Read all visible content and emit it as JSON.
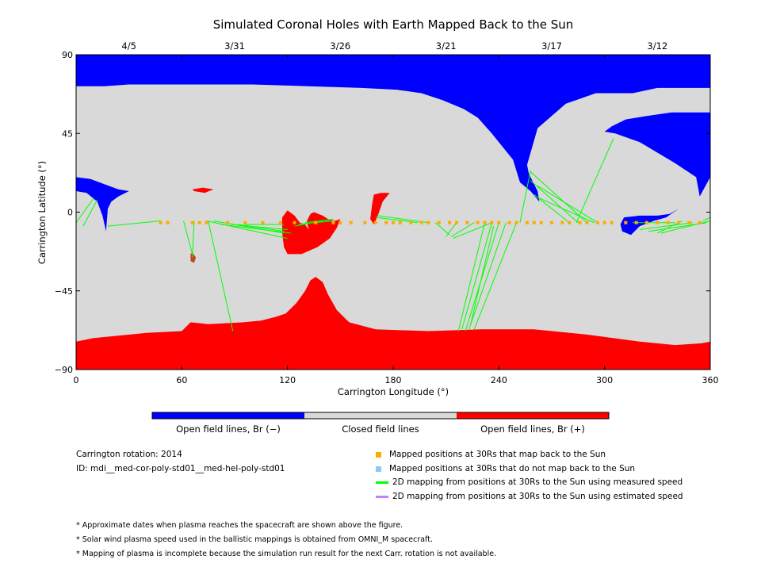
{
  "chart_data": {
    "type": "map",
    "title": "Simulated Coronal Holes with Earth Mapped Back to the Sun",
    "xlabel": "Carrington Longitude (°)",
    "ylabel": "Carrington Latitude (°)",
    "xlim": [
      0,
      360
    ],
    "ylim": [
      -90,
      90
    ],
    "xticks": [
      0,
      60,
      120,
      180,
      240,
      300,
      360
    ],
    "yticks": [
      90,
      45,
      0,
      -45,
      -90
    ],
    "yticklabels": [
      "90",
      "45",
      "0",
      "−45",
      "−90"
    ],
    "top_dates": [
      {
        "label": "4/5",
        "lon": 30
      },
      {
        "label": "3/31",
        "lon": 90
      },
      {
        "label": "3/26",
        "lon": 150
      },
      {
        "label": "3/21",
        "lon": 210
      },
      {
        "label": "3/17",
        "lon": 270
      },
      {
        "label": "3/12",
        "lon": 330
      }
    ],
    "colors": {
      "open_negative": "#0000ff",
      "closed": "#d9d9d9",
      "open_positive": "#ff0000",
      "mapped_orange": "#ffaa00",
      "unmapped_blue": "#8cc8ff",
      "line_green": "#00ff00",
      "line_purple": "#c080ff"
    },
    "regions": {
      "north_negative": [
        [
          0,
          90
        ],
        [
          360,
          90
        ],
        [
          360,
          20
        ],
        [
          354,
          9
        ],
        [
          352,
          20
        ],
        [
          340,
          28
        ],
        [
          320,
          40
        ],
        [
          306,
          45
        ],
        [
          300,
          46
        ],
        [
          304,
          49
        ],
        [
          312,
          53
        ],
        [
          324,
          55
        ],
        [
          338,
          57
        ],
        [
          350,
          57
        ],
        [
          360,
          57
        ],
        [
          360,
          71
        ],
        [
          330,
          71
        ],
        [
          316,
          68
        ],
        [
          295,
          68
        ],
        [
          278,
          62
        ],
        [
          262,
          48
        ],
        [
          256,
          27
        ],
        [
          257,
          22
        ],
        [
          262,
          12
        ],
        [
          263,
          6
        ],
        [
          258,
          12
        ],
        [
          252,
          17
        ],
        [
          248,
          30
        ],
        [
          236,
          45
        ],
        [
          228,
          54
        ],
        [
          220,
          59
        ],
        [
          208,
          64
        ],
        [
          196,
          68
        ],
        [
          182,
          70
        ],
        [
          162,
          71
        ],
        [
          132,
          72
        ],
        [
          100,
          73
        ],
        [
          60,
          73
        ],
        [
          30,
          73
        ],
        [
          16,
          72
        ],
        [
          8,
          72
        ],
        [
          0,
          72
        ]
      ],
      "west_negative": [
        [
          0,
          20
        ],
        [
          8,
          19
        ],
        [
          16,
          16
        ],
        [
          24,
          13
        ],
        [
          30,
          12
        ],
        [
          24,
          9
        ],
        [
          20,
          6
        ],
        [
          18,
          2
        ],
        [
          17,
          -11
        ],
        [
          15,
          -2
        ],
        [
          12,
          6
        ],
        [
          6,
          11
        ],
        [
          0,
          12
        ]
      ],
      "small_negative": [
        [
          311,
          -3
        ],
        [
          320,
          -2
        ],
        [
          330,
          -2
        ],
        [
          337,
          -1
        ],
        [
          342,
          2
        ],
        [
          335,
          -3
        ],
        [
          328,
          -5
        ],
        [
          320,
          -8
        ],
        [
          315,
          -13
        ],
        [
          310,
          -11
        ],
        [
          309,
          -7
        ]
      ],
      "south_positive": [
        [
          0,
          -74
        ],
        [
          10,
          -72
        ],
        [
          20,
          -71
        ],
        [
          40,
          -69
        ],
        [
          60,
          -68
        ],
        [
          65,
          -63
        ],
        [
          75,
          -64
        ],
        [
          95,
          -63
        ],
        [
          105,
          -62
        ],
        [
          113,
          -60
        ],
        [
          119,
          -58
        ],
        [
          125,
          -52
        ],
        [
          130,
          -45
        ],
        [
          133,
          -39
        ],
        [
          136,
          -37
        ],
        [
          140,
          -40
        ],
        [
          143,
          -47
        ],
        [
          148,
          -56
        ],
        [
          155,
          -63
        ],
        [
          170,
          -67
        ],
        [
          200,
          -68
        ],
        [
          230,
          -67
        ],
        [
          260,
          -67
        ],
        [
          290,
          -70
        ],
        [
          320,
          -74
        ],
        [
          340,
          -76
        ],
        [
          355,
          -75
        ],
        [
          360,
          -74
        ],
        [
          360,
          -90
        ],
        [
          0,
          -90
        ]
      ],
      "pos_120": [
        [
          117,
          -3
        ],
        [
          120,
          1
        ],
        [
          124,
          -2
        ],
        [
          127,
          -6
        ],
        [
          130,
          -7
        ],
        [
          132,
          -10
        ],
        [
          131,
          -5
        ],
        [
          133,
          -1
        ],
        [
          135,
          0
        ],
        [
          140,
          -2
        ],
        [
          143,
          -4
        ],
        [
          147,
          -5
        ],
        [
          150,
          -4
        ],
        [
          148,
          -9
        ],
        [
          144,
          -15
        ],
        [
          137,
          -20
        ],
        [
          128,
          -24
        ],
        [
          120,
          -24
        ],
        [
          118,
          -20
        ],
        [
          117,
          -12
        ]
      ],
      "pos_170": [
        [
          169,
          10
        ],
        [
          173,
          11
        ],
        [
          178,
          11
        ],
        [
          174,
          6
        ],
        [
          172,
          0
        ],
        [
          170,
          -5
        ],
        [
          169,
          -7
        ],
        [
          167,
          -4
        ],
        [
          168,
          4
        ]
      ],
      "pos_65": [
        [
          66,
          13
        ],
        [
          72,
          14
        ],
        [
          78,
          13
        ],
        [
          73,
          11
        ],
        [
          67,
          12
        ]
      ],
      "pos_67": [
        [
          66,
          -23
        ],
        [
          68,
          -26
        ],
        [
          67,
          -29
        ],
        [
          65,
          -28
        ],
        [
          65,
          -24
        ]
      ]
    },
    "ballistic_lines": [
      [
        [
          0,
          -6
        ],
        [
          10,
          8
        ]
      ],
      [
        [
          4,
          -8
        ],
        [
          12,
          7
        ]
      ],
      [
        [
          18,
          -8
        ],
        [
          48,
          -5
        ]
      ],
      [
        [
          61,
          -5
        ],
        [
          66,
          -24
        ]
      ],
      [
        [
          67,
          -5
        ],
        [
          66,
          -26
        ]
      ],
      [
        [
          89,
          -68
        ],
        [
          75,
          -5
        ]
      ],
      [
        [
          74,
          -5
        ],
        [
          120,
          -15
        ]
      ],
      [
        [
          78,
          -5
        ],
        [
          118,
          -12
        ]
      ],
      [
        [
          82,
          -7
        ],
        [
          122,
          -12
        ]
      ],
      [
        [
          88,
          -7
        ],
        [
          120,
          -10
        ]
      ],
      [
        [
          92,
          -7
        ],
        [
          118,
          -11
        ]
      ],
      [
        [
          96,
          -7
        ],
        [
          118,
          -7
        ]
      ],
      [
        [
          124,
          -8
        ],
        [
          140,
          -5
        ]
      ],
      [
        [
          126,
          -7
        ],
        [
          144,
          -5
        ]
      ],
      [
        [
          130,
          -6
        ],
        [
          146,
          -4
        ]
      ],
      [
        [
          136,
          -6
        ],
        [
          146,
          -5
        ]
      ],
      [
        [
          170,
          -3
        ],
        [
          194,
          -6
        ]
      ],
      [
        [
          171,
          -2
        ],
        [
          200,
          -6
        ]
      ],
      [
        [
          213,
          -14
        ],
        [
          226,
          -6
        ]
      ],
      [
        [
          214,
          -15
        ],
        [
          236,
          -6
        ]
      ],
      [
        [
          212,
          -13
        ],
        [
          204,
          -6
        ]
      ],
      [
        [
          210,
          -14
        ],
        [
          216,
          -6
        ]
      ],
      [
        [
          217,
          -68
        ],
        [
          232,
          -6
        ]
      ],
      [
        [
          219,
          -67
        ],
        [
          236,
          -6
        ]
      ],
      [
        [
          221,
          -68
        ],
        [
          240,
          -6
        ]
      ],
      [
        [
          223,
          -67
        ],
        [
          244,
          -6
        ]
      ],
      [
        [
          226,
          -67
        ],
        [
          250,
          -6
        ]
      ],
      [
        [
          224,
          -64
        ],
        [
          237,
          -8
        ]
      ],
      [
        [
          252,
          -6
        ],
        [
          258,
          24
        ]
      ],
      [
        [
          260,
          10
        ],
        [
          280,
          -6
        ]
      ],
      [
        [
          258,
          18
        ],
        [
          285,
          -6
        ]
      ],
      [
        [
          258,
          23
        ],
        [
          290,
          -6
        ]
      ],
      [
        [
          262,
          15
        ],
        [
          296,
          -6
        ]
      ],
      [
        [
          263,
          8
        ],
        [
          294,
          -6
        ]
      ],
      [
        [
          284,
          -6
        ],
        [
          305,
          42
        ]
      ],
      [
        [
          316,
          -6
        ],
        [
          340,
          -6
        ]
      ],
      [
        [
          320,
          -10
        ],
        [
          350,
          -6
        ]
      ],
      [
        [
          325,
          -11
        ],
        [
          358,
          -6
        ]
      ],
      [
        [
          330,
          -12
        ],
        [
          344,
          -5
        ]
      ],
      [
        [
          332,
          -12
        ],
        [
          360,
          -5
        ]
      ],
      [
        [
          356,
          -5
        ],
        [
          360,
          -3
        ]
      ]
    ],
    "mapped_points_lon": [
      48,
      52,
      66,
      70,
      74,
      86,
      96,
      106,
      116,
      124,
      136,
      146,
      150,
      156,
      164,
      170,
      176,
      180,
      184,
      190,
      196,
      200,
      206,
      212,
      216,
      222,
      228,
      232,
      236,
      240,
      246,
      250,
      256,
      260,
      264,
      270,
      276,
      280,
      286,
      290,
      296,
      300,
      304,
      312,
      318,
      324,
      330,
      336,
      342,
      348,
      354
    ],
    "mapped_points_lat": -6
  },
  "colorbar": {
    "colors": [
      "#0000ff",
      "#d9d9d9",
      "#ff0000"
    ],
    "labels": [
      "Open field lines, Br (−)",
      "Closed field lines",
      "Open field lines, Br (+)"
    ]
  },
  "info": {
    "rotation": "Carrington rotation: 2014",
    "id": "ID: mdi__med-cor-poly-std01__med-hel-poly-std01"
  },
  "legend": {
    "items": [
      {
        "label": "Mapped positions at 30Rs that map back to the Sun",
        "kind": "square",
        "color": "#ffaa00"
      },
      {
        "label": "Mapped positions at 30Rs that do not map back to the Sun",
        "kind": "square",
        "color": "#8cc8ff"
      },
      {
        "label": "2D mapping from positions at 30Rs to the Sun using measured speed",
        "kind": "line",
        "color": "#00ff00"
      },
      {
        "label": "2D mapping from positions at 30Rs to the Sun using estimated speed",
        "kind": "line",
        "color": "#c080ff"
      }
    ]
  },
  "notes": [
    "* Approximate dates when plasma reaches the spacecraft are shown above the figure.",
    "* Solar wind plasma speed used in the ballistic mappings is obtained from OMNI_M spacecraft.",
    "* Mapping of plasma is incomplete because the simulation run result for the next Carr. rotation is not available."
  ]
}
